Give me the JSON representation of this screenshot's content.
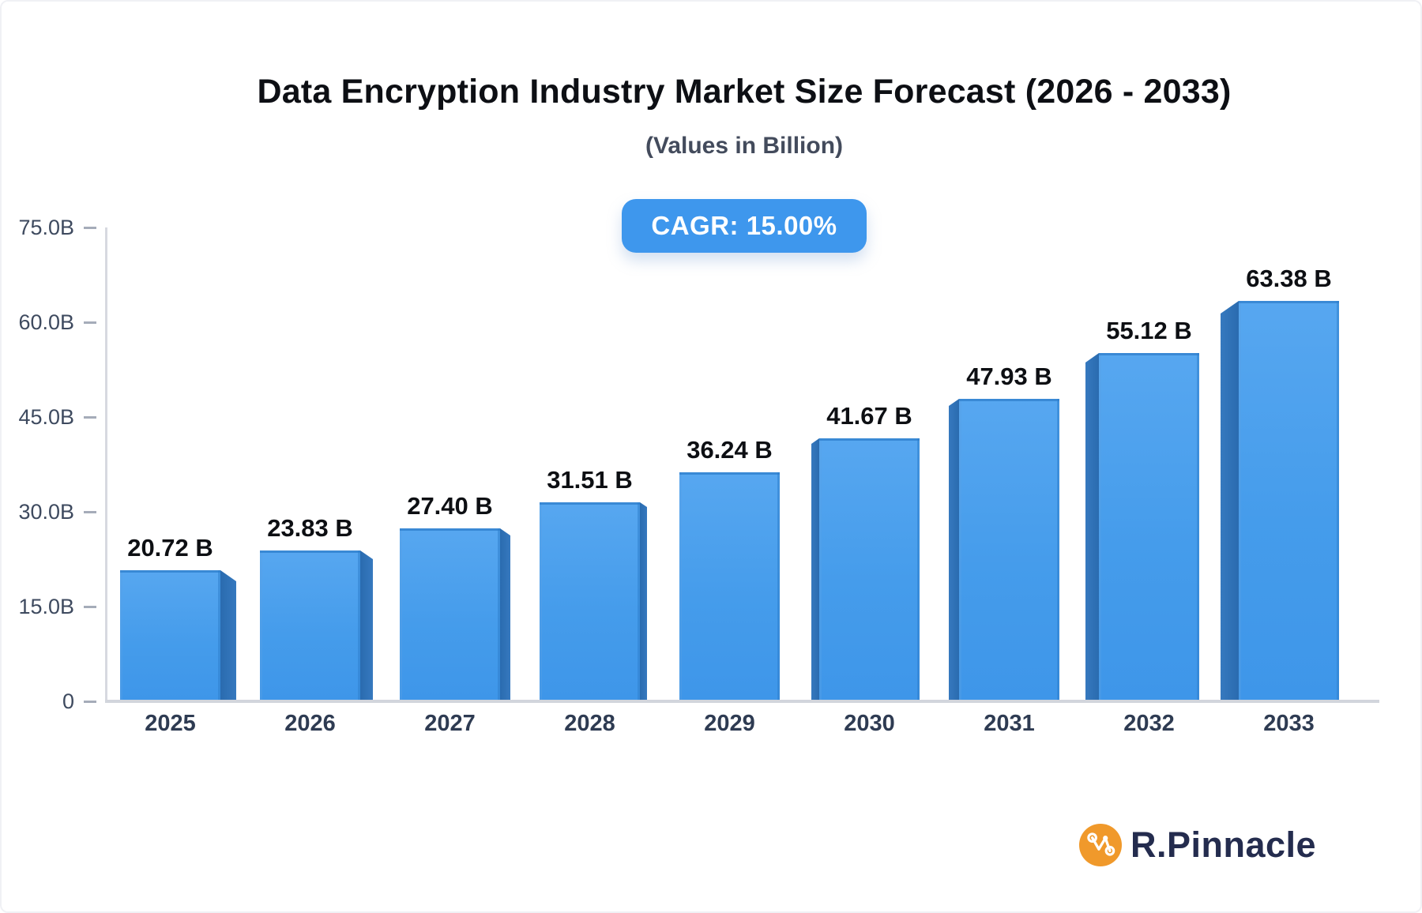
{
  "title": "Data Encryption Industry Market Size Forecast (2026 - 2033)",
  "subtitle": "(Values in Billion)",
  "cagr_badge": "CAGR: 15.00%",
  "brand": {
    "name": "R.Pinnacle",
    "icon": "network-graph-icon"
  },
  "chart_data": {
    "type": "bar",
    "title": "Data Encryption Industry Market Size Forecast (2026 - 2033)",
    "subtitle": "(Values in Billion)",
    "annotation": "CAGR: 15.00%",
    "categories": [
      "2025",
      "2026",
      "2027",
      "2028",
      "2029",
      "2030",
      "2031",
      "2032",
      "2033"
    ],
    "values": [
      20.72,
      23.83,
      27.4,
      31.51,
      36.24,
      41.67,
      47.93,
      55.12,
      63.38
    ],
    "bar_labels": [
      "20.72 B",
      "23.83 B",
      "27.40 B",
      "31.51 B",
      "36.24 B",
      "41.67 B",
      "47.93 B",
      "55.12 B",
      "63.38 B"
    ],
    "unit": "Billion",
    "ylim": [
      0,
      75
    ],
    "yticks": [
      {
        "value": 0,
        "label": "0"
      },
      {
        "value": 15,
        "label": "15.0B"
      },
      {
        "value": 30,
        "label": "30.0B"
      },
      {
        "value": 45,
        "label": "45.0B"
      },
      {
        "value": 60,
        "label": "60.0B"
      },
      {
        "value": 75,
        "label": "75.0B"
      }
    ],
    "xlabel": "",
    "ylabel": "",
    "grid": false,
    "legend_position": "none",
    "style": "3d-perspective-bars",
    "colors": {
      "bar_face": "#459CEB",
      "bar_face_top": "#57A7F0",
      "bar_side": "#2D70B4",
      "axis_line": "#D6D8DF",
      "tick": "#A5ACB9",
      "y_label_text": "#3E4A5F",
      "x_label_text": "#2E3B52",
      "value_label_text": "#0D0F13",
      "badge_bg": "#3E97ED",
      "badge_text": "#FFFFFF",
      "brand_orange": "#F0992B",
      "brand_navy": "#242C4E"
    }
  }
}
